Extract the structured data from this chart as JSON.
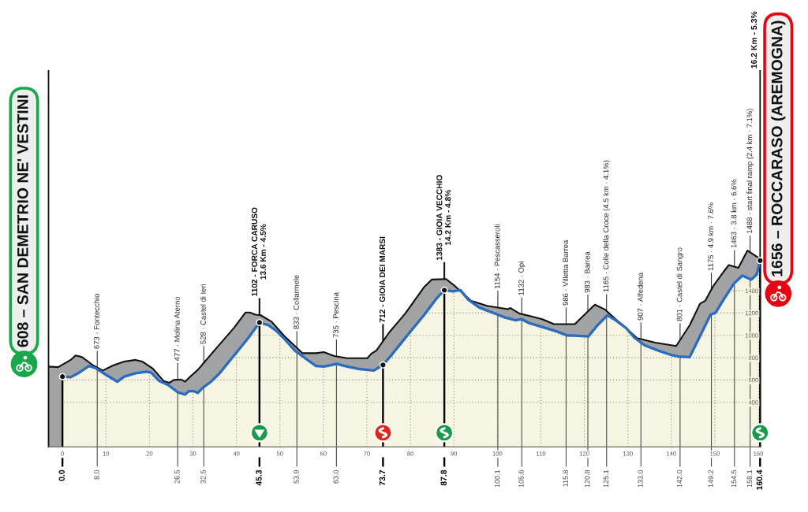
{
  "chart_data": {
    "type": "area",
    "xlim": [
      -3.2,
      160.4
    ],
    "ylim": [
      0,
      3370
    ],
    "xticks": [
      0,
      10,
      20,
      30,
      40,
      50,
      60,
      70,
      80,
      90,
      100,
      110,
      120,
      130,
      140,
      150,
      160
    ],
    "yticks": [
      400,
      600,
      800,
      1000,
      1200,
      1400
    ],
    "grid": true,
    "series": [
      {
        "color": "#111111",
        "x": [
          -3.2,
          -1.0,
          1.9,
          3.0,
          4.5,
          7.1,
          9.3,
          11.6,
          14.2,
          16.8,
          18.4,
          20.7,
          23.3,
          24.6,
          25.6,
          27.2,
          28.2,
          29.5,
          31.1,
          35.6,
          39.5,
          42.1,
          43.1,
          44.4,
          45.6,
          48.0,
          51.0,
          55.2,
          58.3,
          60.1,
          62.5,
          65.5,
          70.1,
          71.0,
          72.2,
          75.2,
          78.8,
          83.1,
          84.9,
          88.2,
          90.3,
          93.9,
          97.6,
          102.4,
          103.0,
          105.1,
          107.9,
          110.3,
          113.0,
          117.8,
          122.4,
          124.8,
          127.2,
          129.6,
          132.1,
          136.3,
          141.1,
          144.2,
          146.6,
          147.8,
          149.6,
          152.0,
          153.2,
          155.4,
          157.5,
          160.4
        ],
        "values": [
          720,
          715,
          780,
          820,
          805,
          730,
          685,
          730,
          765,
          780,
          765,
          705,
          590,
          575,
          600,
          605,
          585,
          635,
          690,
          895,
          1070,
          1205,
          1205,
          1185,
          1180,
          1125,
          995,
          840,
          840,
          850,
          815,
          795,
          795,
          835,
          865,
          1030,
          1195,
          1430,
          1500,
          1505,
          1440,
          1310,
          1265,
          1235,
          1245,
          1195,
          1170,
          1145,
          1100,
          1100,
          1275,
          1230,
          1145,
          1065,
          975,
          935,
          905,
          1090,
          1285,
          1310,
          1440,
          1570,
          1630,
          1605,
          1760,
          1685
        ]
      },
      {
        "color": "#2a6cbf",
        "x": [
          0,
          1.9,
          3.8,
          6.1,
          7.7,
          10.3,
          12.6,
          14.2,
          16.8,
          19.4,
          20.4,
          22.3,
          24.3,
          26.5,
          28.2,
          29.1,
          30.1,
          31.1,
          32.4,
          34.0,
          36.0,
          40.2,
          42.8,
          45.3,
          47.4,
          49.2,
          51.0,
          53.4,
          55.8,
          58.3,
          60.1,
          61.9,
          63.1,
          64.9,
          67.9,
          71.6,
          73.7,
          75.8,
          79.4,
          83.1,
          86.1,
          87.8,
          89.7,
          91.5,
          93.3,
          95.8,
          98.8,
          101.8,
          104.2,
          105.6,
          107.3,
          110.3,
          113.3,
          116.0,
          118.7,
          120.9,
          123.0,
          125.3,
          127.2,
          129.6,
          131.5,
          133.9,
          136.9,
          139.9,
          141.7,
          144.2,
          146.6,
          149.0,
          150.2,
          152.0,
          154.4,
          156.3,
          158.4,
          159.6,
          160.4
        ],
        "values": [
          630,
          625,
          665,
          725,
          705,
          640,
          585,
          630,
          660,
          675,
          665,
          590,
          555,
          490,
          470,
          500,
          500,
          485,
          535,
          580,
          655,
          855,
          980,
          1115,
          1090,
          1040,
          970,
          865,
          795,
          725,
          720,
          735,
          745,
          725,
          700,
          685,
          735,
          830,
          1005,
          1180,
          1335,
          1405,
          1395,
          1405,
          1320,
          1250,
          1205,
          1160,
          1135,
          1145,
          1110,
          1075,
          1040,
          1000,
          995,
          990,
          1090,
          1180,
          1135,
          1065,
          980,
          910,
          865,
          825,
          810,
          805,
          995,
          1185,
          1205,
          1320,
          1465,
          1535,
          1500,
          1545,
          1670
        ]
      }
    ],
    "ref_lines": [
      {
        "axis": "x",
        "value": 0.0,
        "label": "0.0",
        "color": "#000000"
      },
      {
        "axis": "x",
        "value": 8.0,
        "label": "8.0",
        "color": "#4d4d4d"
      },
      {
        "axis": "x",
        "value": 26.5,
        "label": "26.5",
        "color": "#4d4d4d"
      },
      {
        "axis": "x",
        "value": 32.5,
        "label": "32.5",
        "color": "#4d4d4d"
      },
      {
        "axis": "x",
        "value": 45.3,
        "label": "45.3",
        "color": "#000000"
      },
      {
        "axis": "x",
        "value": 53.9,
        "label": "53.9",
        "color": "#4d4d4d"
      },
      {
        "axis": "x",
        "value": 63.0,
        "label": "63.0",
        "color": "#4d4d4d"
      },
      {
        "axis": "x",
        "value": 73.7,
        "label": "73.7",
        "color": "#000000"
      },
      {
        "axis": "x",
        "value": 87.8,
        "label": "87.8",
        "color": "#000000"
      },
      {
        "axis": "x",
        "value": 100.1,
        "label": "100.1",
        "color": "#4d4d4d"
      },
      {
        "axis": "x",
        "value": 105.6,
        "label": "105.6",
        "color": "#4d4d4d"
      },
      {
        "axis": "x",
        "value": 115.8,
        "label": "115.8",
        "color": "#4d4d4d"
      },
      {
        "axis": "x",
        "value": 120.8,
        "label": "120.8",
        "color": "#4d4d4d"
      },
      {
        "axis": "x",
        "value": 125.1,
        "label": "125.1",
        "color": "#4d4d4d"
      },
      {
        "axis": "x",
        "value": 133.0,
        "label": "133.0",
        "color": "#4d4d4d"
      },
      {
        "axis": "x",
        "value": 142.0,
        "label": "142.0",
        "color": "#4d4d4d"
      },
      {
        "axis": "x",
        "value": 149.2,
        "label": "149.2",
        "color": "#4d4d4d"
      },
      {
        "axis": "x",
        "value": 154.5,
        "label": "154.5",
        "color": "#4d4d4d"
      },
      {
        "axis": "x",
        "value": 158.1,
        "label": "158.1",
        "color": "#4d4d4d"
      },
      {
        "axis": "x",
        "value": 160.4,
        "label": "160.4",
        "color": "#000000"
      }
    ],
    "annotations": [
      "608 – SAN DEMETRIO NE' VESTINI",
      {
        "text": "673 · Fontecchio",
        "x": 8.0,
        "y": 673
      },
      {
        "text": "477 · Molina Aterno",
        "x": 26.5,
        "y": 477
      },
      {
        "text": "528 · Castel di Ieri",
        "x": 32.5,
        "y": 528
      },
      {
        "text": "1102 - FORCA CARUSO\n13.6 Km - 4.5%",
        "x": 45.3,
        "y": 1102
      },
      {
        "text": "833 · Collarmele",
        "x": 53.9,
        "y": 833
      },
      {
        "text": "735 · Pescina",
        "x": 63.0,
        "y": 735
      },
      {
        "text": "712 - GIOIA DEI MARSI",
        "x": 73.7,
        "y": 712
      },
      {
        "text": "1383 - GIOIA VECCHIO\n14.2 Km - 4.8%",
        "x": 87.8,
        "y": 1383
      },
      {
        "text": "1154 · Pescasseroli",
        "x": 100.1,
        "y": 1154
      },
      {
        "text": "1132 · Opi",
        "x": 105.6,
        "y": 1132
      },
      {
        "text": "986 · Villetta Barrea",
        "x": 115.8,
        "y": 986
      },
      {
        "text": "983 · Barrea",
        "x": 120.8,
        "y": 983
      },
      {
        "text": "1165 · Colle della Croce (4.5 km · 4.1%)",
        "x": 125.1,
        "y": 1165
      },
      {
        "text": "907 · Alfedena",
        "x": 133.0,
        "y": 907
      },
      {
        "text": "801 · Castel di Sangro",
        "x": 142.0,
        "y": 801
      },
      {
        "text": "1175 · 4.9 km · 7.6%",
        "x": 149.2,
        "y": 1175
      },
      {
        "text": "1463 · 3.8 km · 6.6%",
        "x": 154.5,
        "y": 1463
      },
      {
        "text": "1488 · start final ramp (2.4 km · 7.1%)",
        "x": 158.1,
        "y": 1488
      },
      "16.2 Km - 5.3%",
      "1656 – ROCCARASO (AREMOGNA)"
    ]
  }
}
